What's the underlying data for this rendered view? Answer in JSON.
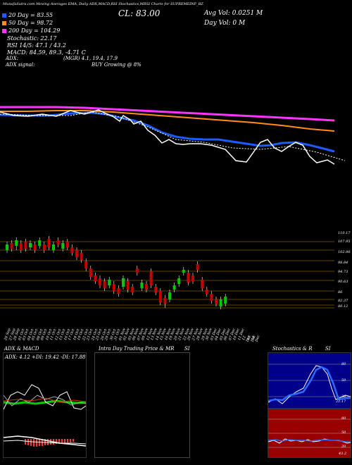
{
  "header": {
    "top_line": "MunafaSutra.com Moving Averages EMA, Daily ADX,MACD,RSI Stochastics,MRSI Charts for SUPREMEINF_BZ",
    "ticker_band": "SUPREMEINF_BZ",
    "close_label": "CL: 83.00",
    "avg_vol": "Avg Vol: 0.0251  M",
    "day_vol": "Day Vol: 0   M",
    "legend": [
      {
        "label": "20  Day = 83.55",
        "color": "#1e5bff"
      },
      {
        "label": "50  Day = 98.72",
        "color": "#ff8c1a"
      },
      {
        "label": "200  Day = 104.29",
        "color": "#ff33ff"
      }
    ],
    "stochastic": "Stochastic: 22.17",
    "rsi": "RSI 14/5: 47.1 / 43.2",
    "macd": "MACD: 84.59,  89.3,  -4.71 C",
    "adx_label": "ADX:",
    "adx_values": "(MGR) 4.1,  19.4,   17.9",
    "adx_signal_label": "ADX  signal:",
    "adx_signal_value": "BUY Growing @ 8%"
  },
  "price_axis": [
    "110.17",
    "107.95",
    "102.96",
    "98.84",
    "94.73",
    "90.63",
    "86",
    "82.37",
    "80.12"
  ],
  "dates": [
    "26 Sep",
    "27 Sep",
    "28 Sep",
    "01 Oct",
    "03 Oct",
    "04 Oct",
    "05 Oct",
    "08 Oct",
    "09 Oct",
    "10 Oct",
    "11 Oct",
    "12 Oct",
    "15 Oct",
    "16 Oct",
    "17 Oct",
    "18 Oct",
    "19 Oct",
    "22 Oct",
    "23 Oct",
    "24 Oct",
    "25 Oct",
    "26 Oct",
    "29 Oct",
    "30 Oct",
    "31 Oct",
    "01 Nov",
    "02 Nov",
    "05 Nov",
    "06 Nov",
    "07 Nov",
    "09 Nov",
    "12 Nov",
    "13 Nov",
    "14 Nov",
    "15 Nov",
    "16 Nov",
    "19 Nov",
    "20 Nov",
    "21 Nov",
    "22 Nov",
    "26 Nov",
    "27 Nov",
    "28 Nov",
    "29 Nov",
    "30 Nov",
    "03 Dec",
    "04 Dec",
    "05 Dec",
    "06 Dec",
    "07 Dec",
    "10 Dec",
    "11 Dec",
    "12 Dec",
    "13 Dec",
    "14 Dec"
  ],
  "panels": {
    "adx_macd": {
      "title": "ADX  & MACD",
      "values": "ADX: 4.12  +DI: 19.42  -DI: 17.88"
    },
    "intraday": {
      "title": "Intra  Day Trading Price  & MR",
      "title_right": "SI"
    },
    "stoch": {
      "title": "Stochastics & R",
      "title_right": "SI",
      "levels": [
        "80",
        "50",
        "20"
      ],
      "value": "22.17"
    },
    "rsi": {
      "levels": [
        "80",
        "50",
        "20"
      ],
      "value": "43.2"
    }
  },
  "colors": {
    "ema20": "#1e5bff",
    "ema50": "#ff8c1a",
    "ema200": "#ff33ff",
    "up": "#00cc00",
    "down": "#cc0000",
    "level": "#b8860b"
  }
}
